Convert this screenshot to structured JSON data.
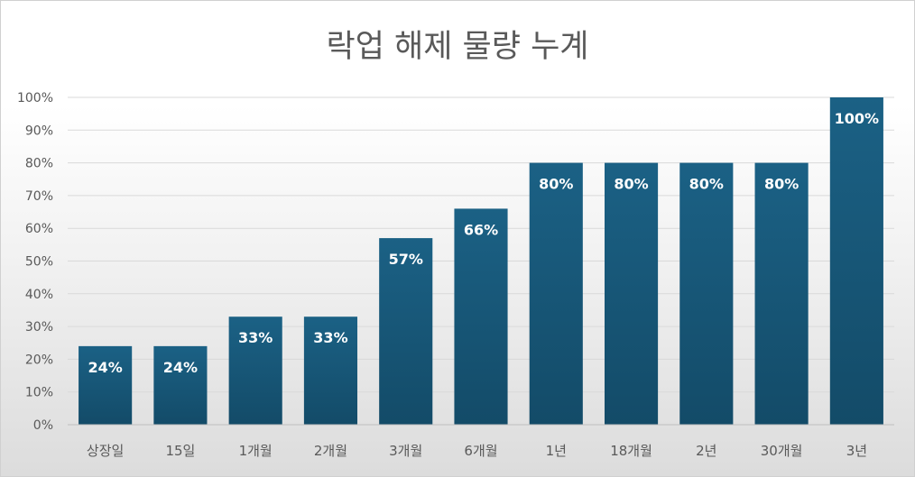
{
  "chart_data": {
    "type": "bar",
    "title": "락업 해제 물량 누계",
    "categories": [
      "상장일",
      "15일",
      "1개월",
      "2개월",
      "3개월",
      "6개월",
      "1년",
      "18개월",
      "2년",
      "30개월",
      "3년"
    ],
    "values": [
      24,
      24,
      33,
      33,
      57,
      66,
      80,
      80,
      80,
      80,
      100
    ],
    "data_labels": [
      "24%",
      "24%",
      "33%",
      "33%",
      "57%",
      "66%",
      "80%",
      "80%",
      "80%",
      "80%",
      "100%"
    ],
    "yticks": [
      "0%",
      "10%",
      "20%",
      "30%",
      "40%",
      "50%",
      "60%",
      "70%",
      "80%",
      "90%",
      "100%"
    ],
    "ylim": [
      0,
      100
    ],
    "grid": true,
    "legend": "none",
    "bar_color_top": "#1b6185",
    "bar_color_bottom": "#134b68",
    "label_color": "#ffffff",
    "axis_text_color": "#595959",
    "title_color": "#595959",
    "grid_color": "#d9d9d9"
  }
}
